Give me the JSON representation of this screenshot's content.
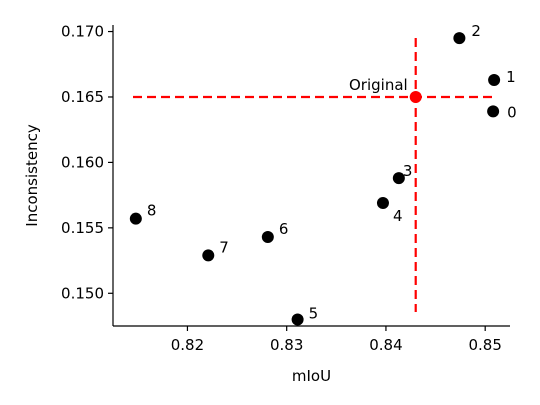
{
  "chart_data": {
    "type": "scatter",
    "title": "",
    "xlabel": "mIoU",
    "ylabel": "Inconsistency",
    "xlim": [
      0.8125,
      0.8525
    ],
    "ylim": [
      0.1475,
      0.1705
    ],
    "xticks": [
      {
        "value": 0.82,
        "label": "0.82"
      },
      {
        "value": 0.83,
        "label": "0.83"
      },
      {
        "value": 0.84,
        "label": "0.84"
      },
      {
        "value": 0.85,
        "label": "0.85"
      }
    ],
    "yticks": [
      {
        "value": 0.15,
        "label": "0.150"
      },
      {
        "value": 0.155,
        "label": "0.155"
      },
      {
        "value": 0.16,
        "label": "0.160"
      },
      {
        "value": 0.165,
        "label": "0.165"
      },
      {
        "value": 0.17,
        "label": "0.170"
      }
    ],
    "grid": false,
    "points": [
      {
        "label": "0",
        "x": 0.8508,
        "y": 0.1639
      },
      {
        "label": "1",
        "x": 0.8509,
        "y": 0.1663
      },
      {
        "label": "2",
        "x": 0.8474,
        "y": 0.1695
      },
      {
        "label": "3",
        "x": 0.8413,
        "y": 0.1588
      },
      {
        "label": "4",
        "x": 0.8397,
        "y": 0.1569
      },
      {
        "label": "5",
        "x": 0.8311,
        "y": 0.148
      },
      {
        "label": "6",
        "x": 0.8281,
        "y": 0.1543
      },
      {
        "label": "7",
        "x": 0.8221,
        "y": 0.1529
      },
      {
        "label": "8",
        "x": 0.8148,
        "y": 0.1557
      }
    ],
    "original": {
      "label": "Original",
      "x": 0.843,
      "y": 0.165
    },
    "colors": {
      "points": "#000000",
      "original": "#ff0000",
      "reference_lines": "#ff0000"
    }
  }
}
